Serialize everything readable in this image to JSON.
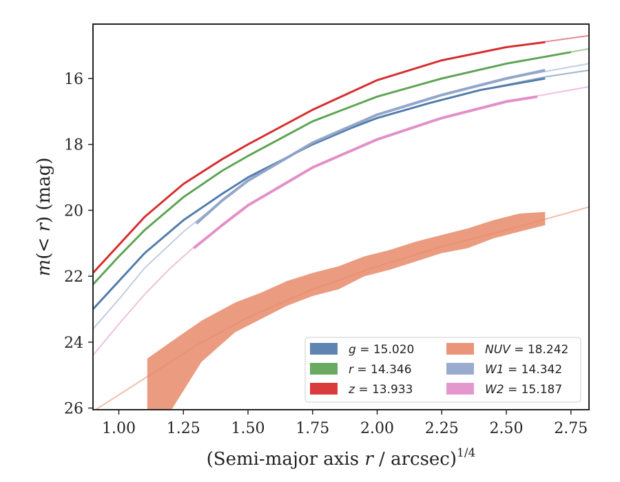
{
  "chart_data": {
    "type": "line",
    "xlabel": "(Semi-major axis r / arcsec)",
    "xlabel_italic": "r",
    "xlabel_prefix": "(Semi-major axis ",
    "xlabel_suffix": " / arcsec)",
    "xlabel_exponent": "1/4",
    "ylabel_prefix": "m",
    "ylabel_mid": "(< ",
    "ylabel_r": "r",
    "ylabel_suffix": ") (mag)",
    "xlim": [
      0.9,
      2.82
    ],
    "ylim": [
      26.05,
      14.35
    ],
    "y_inverted": true,
    "grid": false,
    "legend_position": "lower right",
    "x_ticks": [
      "1.00",
      "1.25",
      "1.50",
      "1.75",
      "2.00",
      "2.25",
      "2.50",
      "2.75"
    ],
    "y_ticks": [
      "16",
      "18",
      "20",
      "22",
      "24",
      "26"
    ],
    "series": [
      {
        "key": "g",
        "band": "g",
        "legend_label": "g = 15.020",
        "color": "#4c78a8",
        "fit_x": [
          0.9,
          1.0,
          1.1,
          1.25,
          1.4,
          1.5,
          1.6,
          1.75,
          1.9,
          2.0,
          2.2,
          2.4,
          2.65,
          2.82
        ],
        "fit_y": [
          23.0,
          22.15,
          21.3,
          20.3,
          19.5,
          19.0,
          18.6,
          18.0,
          17.5,
          17.2,
          16.75,
          16.35,
          15.95,
          15.75
        ],
        "data_x": [
          0.9,
          1.0,
          1.1,
          1.25,
          1.4,
          1.5,
          1.6,
          1.75,
          1.9,
          2.0,
          2.2,
          2.4,
          2.65
        ],
        "data_y": [
          23.0,
          22.15,
          21.3,
          20.3,
          19.5,
          19.0,
          18.6,
          18.0,
          17.5,
          17.2,
          16.75,
          16.35,
          16.0
        ]
      },
      {
        "key": "r",
        "band": "r",
        "legend_label": "r = 14.346",
        "color": "#59a14f",
        "fit_x": [
          0.9,
          1.0,
          1.1,
          1.25,
          1.4,
          1.5,
          1.75,
          2.0,
          2.25,
          2.5,
          2.82
        ],
        "fit_y": [
          22.25,
          21.4,
          20.6,
          19.6,
          18.8,
          18.35,
          17.3,
          16.55,
          16.0,
          15.55,
          15.1
        ],
        "data_x": [
          0.9,
          1.0,
          1.1,
          1.25,
          1.4,
          1.5,
          1.75,
          2.0,
          2.25,
          2.5,
          2.75
        ],
        "data_y": [
          22.25,
          21.4,
          20.6,
          19.6,
          18.8,
          18.35,
          17.3,
          16.55,
          16.0,
          15.55,
          15.2
        ]
      },
      {
        "key": "z",
        "band": "z",
        "legend_label": "z = 13.933",
        "color": "#d62728",
        "fit_x": [
          0.9,
          1.0,
          1.1,
          1.25,
          1.4,
          1.5,
          1.75,
          2.0,
          2.25,
          2.5,
          2.82
        ],
        "fit_y": [
          21.9,
          21.05,
          20.2,
          19.2,
          18.45,
          18.0,
          16.95,
          16.05,
          15.45,
          15.05,
          14.7
        ],
        "data_x": [
          0.9,
          1.0,
          1.1,
          1.25,
          1.4,
          1.5,
          1.75,
          2.0,
          2.25,
          2.5,
          2.65
        ],
        "data_y": [
          21.9,
          21.05,
          20.2,
          19.2,
          18.45,
          18.0,
          16.95,
          16.05,
          15.45,
          15.05,
          14.9
        ]
      },
      {
        "key": "nuv",
        "band": "NUV",
        "legend_label": "NUV = 18.242",
        "color": "#e8896a",
        "fit_x": [
          0.9,
          1.0,
          1.1,
          1.2,
          1.3,
          1.5,
          1.75,
          2.0,
          2.25,
          2.5,
          2.82
        ],
        "fit_y": [
          26.1,
          25.6,
          25.1,
          24.6,
          24.1,
          23.25,
          22.4,
          21.7,
          21.1,
          20.6,
          19.9
        ],
        "band_x": [
          1.11,
          1.2,
          1.32,
          1.45,
          1.55,
          1.65,
          1.75,
          1.85,
          1.95,
          2.05,
          2.15,
          2.25,
          2.35,
          2.45,
          2.55,
          2.65
        ],
        "band_lo": [
          24.5,
          24.0,
          23.35,
          22.8,
          22.5,
          22.15,
          21.9,
          21.7,
          21.4,
          21.2,
          20.95,
          20.75,
          20.55,
          20.3,
          20.1,
          20.05
        ],
        "band_hi": [
          26.1,
          26.1,
          24.6,
          23.7,
          23.3,
          22.9,
          22.6,
          22.4,
          22.0,
          21.8,
          21.55,
          21.3,
          21.15,
          20.85,
          20.65,
          20.45
        ]
      },
      {
        "key": "w1",
        "band": "W1",
        "legend_label": "W1 = 14.342",
        "color": "#8fa3c8",
        "fit_x": [
          0.9,
          1.0,
          1.1,
          1.25,
          1.4,
          1.5,
          1.75,
          2.0,
          2.25,
          2.5,
          2.82
        ],
        "fit_y": [
          23.6,
          22.7,
          21.75,
          20.65,
          19.7,
          19.1,
          17.95,
          17.1,
          16.5,
          16.0,
          15.55
        ],
        "data_x": [
          1.3,
          1.4,
          1.5,
          1.75,
          2.0,
          2.25,
          2.5,
          2.65
        ],
        "data_y": [
          20.4,
          19.7,
          19.1,
          17.95,
          17.1,
          16.5,
          16.0,
          15.75
        ]
      },
      {
        "key": "w2",
        "band": "W2",
        "legend_label": "W2 = 15.187",
        "color": "#e08cc6",
        "fit_x": [
          0.9,
          1.0,
          1.1,
          1.2,
          1.3,
          1.5,
          1.75,
          2.0,
          2.25,
          2.5,
          2.82
        ],
        "fit_y": [
          24.4,
          23.45,
          22.55,
          21.75,
          21.05,
          19.85,
          18.7,
          17.85,
          17.2,
          16.7,
          16.25
        ],
        "data_x": [
          1.29,
          1.4,
          1.5,
          1.75,
          2.0,
          2.25,
          2.5,
          2.62
        ],
        "data_y": [
          21.15,
          20.45,
          19.85,
          18.7,
          17.85,
          17.2,
          16.7,
          16.55
        ]
      }
    ],
    "legend": {
      "columns": [
        [
          {
            "series": "g",
            "var": "g",
            "value": "= 15.020"
          },
          {
            "series": "r",
            "var": "r",
            "value": "= 14.346"
          },
          {
            "series": "z",
            "var": "z",
            "value": "= 13.933"
          }
        ],
        [
          {
            "series": "nuv",
            "var": "NUV",
            "value": "= 18.242"
          },
          {
            "series": "w1",
            "var": "W1",
            "value": "= 14.342"
          },
          {
            "series": "w2",
            "var": "W2",
            "value": "= 15.187"
          }
        ]
      ]
    }
  }
}
